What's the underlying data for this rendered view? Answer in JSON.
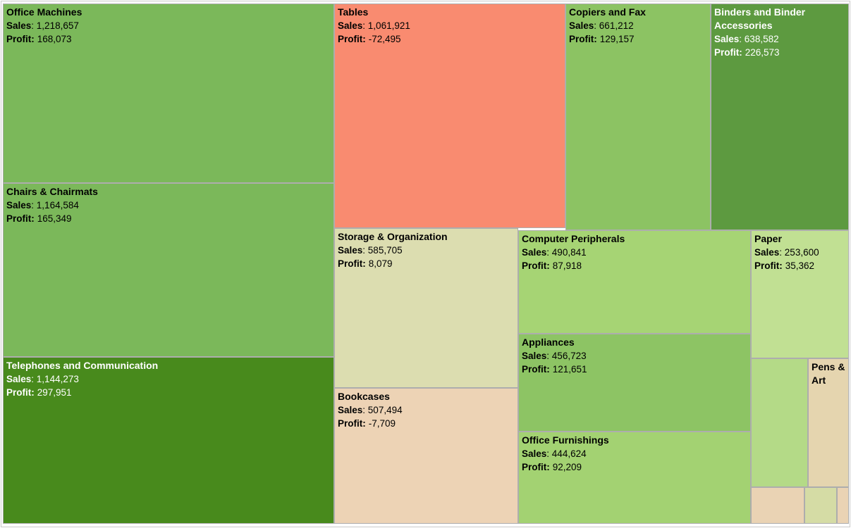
{
  "labels": {
    "sales": "Sales",
    "colon": ": ",
    "profit": "Profit:"
  },
  "chart_data": {
    "type": "treemap",
    "size_measure_label": "Sales",
    "color_measure_label": "Profit",
    "negative_color_example": "#f98b70",
    "positive_color_example": "#488a1c",
    "tiles": [
      {
        "name": "Office Machines",
        "sales": "1,218,657",
        "profit": "168,073",
        "sales_value": 1218657,
        "profit_value": 168073,
        "color": "#7bb85a",
        "text_color": "#000000"
      },
      {
        "name": "Chairs & Chairmats",
        "sales": "1,164,584",
        "profit": "165,349",
        "sales_value": 1164584,
        "profit_value": 165349,
        "color": "#7bb85a",
        "text_color": "#000000"
      },
      {
        "name": "Telephones and Communication",
        "sales": "1,144,273",
        "profit": "297,951",
        "sales_value": 1144273,
        "profit_value": 297951,
        "color": "#488a1c",
        "text_color": "#ffffff"
      },
      {
        "name": "Tables",
        "sales": "1,061,921",
        "profit": "-72,495",
        "sales_value": 1061921,
        "profit_value": -72495,
        "color": "#f98b70",
        "text_color": "#000000"
      },
      {
        "name": "Copiers and Fax",
        "sales": "661,212",
        "profit": "129,157",
        "sales_value": 661212,
        "profit_value": 129157,
        "color": "#8cc363",
        "text_color": "#000000"
      },
      {
        "name": "Binders and Binder Accessories",
        "sales": "638,582",
        "profit": "226,573",
        "sales_value": 638582,
        "profit_value": 226573,
        "color": "#5d9a40",
        "text_color": "#ffffff"
      },
      {
        "name": "Storage & Organization",
        "sales": "585,705",
        "profit": "8,079",
        "sales_value": 585705,
        "profit_value": 8079,
        "color": "#dcddb0",
        "text_color": "#000000"
      },
      {
        "name": "Bookcases",
        "sales": "507,494",
        "profit": "-7,709",
        "sales_value": 507494,
        "profit_value": -7709,
        "color": "#edd3b5",
        "text_color": "#000000"
      },
      {
        "name": "Computer Peripherals",
        "sales": "490,841",
        "profit": "87,918",
        "sales_value": 490841,
        "profit_value": 87918,
        "color": "#a6d474",
        "text_color": "#000000"
      },
      {
        "name": "Appliances",
        "sales": "456,723",
        "profit": "121,651",
        "sales_value": 456723,
        "profit_value": 121651,
        "color": "#8dc464",
        "text_color": "#000000"
      },
      {
        "name": "Office Furnishings",
        "sales": "444,624",
        "profit": "92,209",
        "sales_value": 444624,
        "profit_value": 92209,
        "color": "#a3d272",
        "text_color": "#000000"
      },
      {
        "name": "Paper",
        "sales": "253,600",
        "profit": "35,362",
        "sales_value": 253600,
        "profit_value": 35362,
        "color": "#c1e093",
        "text_color": "#000000"
      },
      {
        "name": "",
        "color": "#b4da87",
        "text_color": "#000000"
      },
      {
        "name": "Pens & Art",
        "color": "#e5d5af",
        "text_color": "#000000"
      },
      {
        "name": "",
        "color": "#ead3b4",
        "text_color": "#000000"
      },
      {
        "name": "",
        "color": "#d5dca5",
        "text_color": "#000000"
      },
      {
        "name": "",
        "color": "#ead3b4",
        "text_color": "#000000"
      }
    ]
  }
}
